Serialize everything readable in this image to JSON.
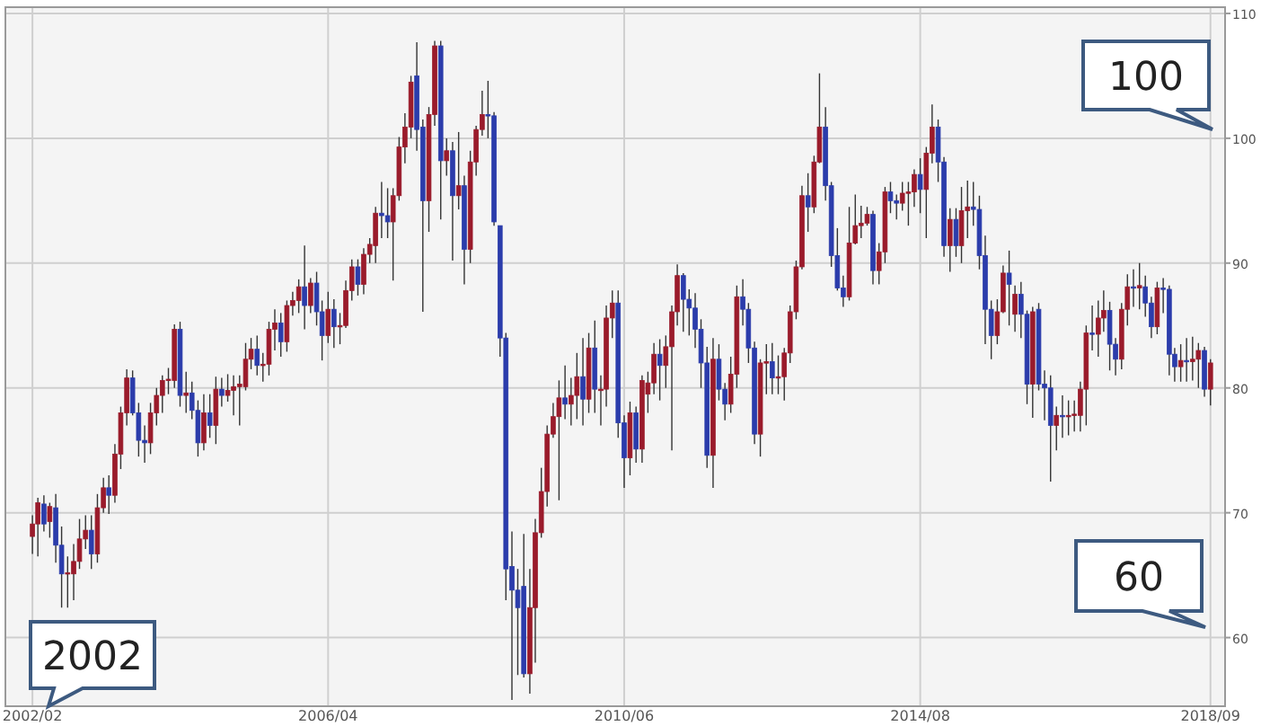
{
  "chart_data": {
    "type": "candlestick",
    "colors": [
      "#9a1b2b",
      "#9a1b2b",
      "#2b3cab",
      "#9a1b2b",
      "#2b3cab",
      "#2b3cab",
      "#9a1b2b",
      "#9a1b2b",
      "#9a1b2b",
      "#9a1b2b",
      "#2b3cab",
      "#9a1b2b",
      "#9a1b2b",
      "#2b3cab",
      "#9a1b2b",
      "#9a1b2b",
      "#9a1b2b",
      "#2b3cab",
      "#2b3cab",
      "#2b3cab",
      "#9a1b2b",
      "#9a1b2b",
      "#9a1b2b",
      "#9a1b2b",
      "#9a1b2b",
      "#2b3cab",
      "#9a1b2b",
      "#2b3cab",
      "#2b3cab",
      "#9a1b2b",
      "#2b3cab",
      "#9a1b2b",
      "#2b3cab",
      "#9a1b2b",
      "#9a1b2b",
      "#9a1b2b",
      "#9a1b2b",
      "#9a1b2b",
      "#2b3cab",
      "#9a1b2b",
      "#9a1b2b",
      "#9a1b2b",
      "#2b3cab",
      "#9a1b2b",
      "#9a1b2b",
      "#9a1b2b",
      "#2b3cab",
      "#9a1b2b",
      "#2b3cab",
      "#2b3cab",
      "#9a1b2b",
      "#2b3cab",
      "#9a1b2b",
      "#9a1b2b",
      "#9a1b2b",
      "#2b3cab",
      "#9a1b2b",
      "#9a1b2b",
      "#9a1b2b",
      "#2b3cab",
      "#2b3cab",
      "#9a1b2b",
      "#9a1b2b",
      "#9a1b2b",
      "#9a1b2b",
      "#2b3cab",
      "#2b3cab",
      "#9a1b2b",
      "#9a1b2b",
      "#2b3cab",
      "#9a1b2b",
      "#2b3cab",
      "#9a1b2b",
      "#2b3cab",
      "#9a1b2b",
      "#9a1b2b",
      "#9a1b2b",
      "#2b3cab",
      "#2b3cab",
      "#2b3cab",
      "#2b3cab",
      "#2b3cab",
      "#2b3cab",
      "#2b3cab",
      "#9a1b2b",
      "#9a1b2b",
      "#9a1b2b",
      "#9a1b2b",
      "#9a1b2b",
      "#9a1b2b",
      "#2b3cab",
      "#9a1b2b",
      "#9a1b2b",
      "#2b3cab",
      "#9a1b2b",
      "#2b3cab",
      "#9a1b2b",
      "#9a1b2b",
      "#9a1b2b",
      "#2b3cab",
      "#2b3cab",
      "#9a1b2b",
      "#2b3cab",
      "#9a1b2b",
      "#9a1b2b",
      "#9a1b2b",
      "#2b3cab",
      "#9a1b2b",
      "#9a1b2b",
      "#9a1b2b",
      "#2b3cab",
      "#2b3cab",
      "#2b3cab",
      "#2b3cab",
      "#2b3cab",
      "#9a1b2b",
      "#2b3cab",
      "#2b3cab",
      "#9a1b2b",
      "#9a1b2b",
      "#2b3cab",
      "#2b3cab",
      "#2b3cab",
      "#9a1b2b",
      "#9a1b2b",
      "#2b3cab",
      "#9a1b2b",
      "#9a1b2b",
      "#9a1b2b",
      "#9a1b2b",
      "#9a1b2b",
      "#2b3cab",
      "#9a1b2b",
      "#9a1b2b",
      "#2b3cab",
      "#2b3cab",
      "#2b3cab",
      "#2b3cab",
      "#9a1b2b",
      "#9a1b2b",
      "#9a1b2b",
      "#9a1b2b",
      "#2b3cab",
      "#9a1b2b",
      "#9a1b2b",
      "#2b3cab",
      "#2b3cab",
      "#9a1b2b",
      "#9a1b2b",
      "#9a1b2b",
      "#2b3cab",
      "#9a1b2b",
      "#9a1b2b",
      "#2b3cab",
      "#2b3cab",
      "#9a1b2b",
      "#2b3cab",
      "#9a1b2b",
      "#9a1b2b",
      "#2b3cab",
      "#2b3cab",
      "#2b3cab",
      "#2b3cab",
      "#9a1b2b",
      "#9a1b2b",
      "#2b3cab",
      "#9a1b2b",
      "#2b3cab",
      "#2b3cab",
      "#9a1b2b",
      "#2b3cab",
      "#2b3cab",
      "#2b3cab",
      "#9a1b2b",
      "#2b3cab",
      "#9a1b2b",
      "#9a1b2b",
      "#9a1b2b",
      "#9a1b2b",
      "#2b3cab",
      "#9a1b2b",
      "#9a1b2b",
      "#2b3cab",
      "#2b3cab",
      "#9a1b2b",
      "#9a1b2b",
      "#2b3cab",
      "#9a1b2b",
      "#2b3cab",
      "#2b3cab",
      "#9a1b2b",
      "#2b3cab",
      "#2b3cab",
      "#2b3cab",
      "#9a1b2b",
      "#2b3cab",
      "#9a1b2b",
      "#9a1b2b",
      "#2b3cab",
      "#9a1b2b"
    ],
    "xlim": [
      "2001-09-15",
      "2018-11-15"
    ],
    "xticks": [
      {
        "value": "2002-02",
        "label": "2002/02"
      },
      {
        "value": "2006-04",
        "label": "2006/04"
      },
      {
        "value": "2010-06",
        "label": "2010/06"
      },
      {
        "value": "2014-08",
        "label": "2014/08"
      },
      {
        "value": "2018-09",
        "label": "2018/09"
      }
    ],
    "ylim": [
      54.5,
      110.5
    ],
    "yticks": [
      60,
      70,
      80,
      90,
      100,
      110
    ],
    "grid": true,
    "annotations": [
      "2002",
      "100",
      "60"
    ],
    "ohlc": [
      [
        68.1,
        69.8,
        66.7,
        69.1
      ],
      [
        69.1,
        71.2,
        66.5,
        70.8
      ],
      [
        70.7,
        71.4,
        68.5,
        69.1
      ],
      [
        69.3,
        70.8,
        68,
        70.5
      ],
      [
        70.4,
        71.5,
        66,
        67.4
      ],
      [
        67.4,
        68.9,
        62.4,
        65.1
      ],
      [
        65.1,
        66.5,
        62.4,
        65.2
      ],
      [
        65.1,
        67.5,
        63,
        66.1
      ],
      [
        66.1,
        69.5,
        65.5,
        67.9
      ],
      [
        67.9,
        69.8,
        67.1,
        68.6
      ],
      [
        68.6,
        69.8,
        65.5,
        66.7
      ],
      [
        66.7,
        71.5,
        66,
        70.4
      ],
      [
        70.4,
        72.8,
        70,
        72
      ],
      [
        72,
        73,
        69.9,
        71.4
      ],
      [
        71.4,
        75.5,
        70.8,
        74.7
      ],
      [
        74.7,
        78.5,
        73.5,
        78
      ],
      [
        78,
        81.5,
        77,
        80.8
      ],
      [
        80.8,
        81.4,
        77.8,
        78
      ],
      [
        78,
        78.8,
        74.5,
        75.8
      ],
      [
        75.8,
        77,
        74,
        75.6
      ],
      [
        75.6,
        78.8,
        74.7,
        78
      ],
      [
        78,
        80,
        77,
        79.4
      ],
      [
        79.4,
        81,
        78,
        80.6
      ],
      [
        80.6,
        81.6,
        79.5,
        80.7
      ],
      [
        80.6,
        85.1,
        80,
        84.7
      ],
      [
        84.7,
        85.3,
        78.5,
        79.4
      ],
      [
        79.4,
        81.3,
        78,
        79.6
      ],
      [
        79.6,
        80.5,
        77.5,
        78.2
      ],
      [
        78.2,
        79,
        74.5,
        75.6
      ],
      [
        75.6,
        79.5,
        75,
        78
      ],
      [
        78,
        79.5,
        76,
        77
      ],
      [
        77,
        80.9,
        75.5,
        79.9
      ],
      [
        79.9,
        80.8,
        78.5,
        79.4
      ],
      [
        79.4,
        81.1,
        78.9,
        79.8
      ],
      [
        79.8,
        81,
        77.8,
        80.1
      ],
      [
        80.1,
        81,
        77,
        80.3
      ],
      [
        80.1,
        83.6,
        79.8,
        82.3
      ],
      [
        82.3,
        84,
        81.5,
        83.1
      ],
      [
        83.1,
        84.2,
        81,
        81.8
      ],
      [
        81.8,
        82.8,
        80.5,
        81.9
      ],
      [
        81.9,
        85.3,
        81,
        84.7
      ],
      [
        84.7,
        86.3,
        83,
        85.2
      ],
      [
        85.2,
        86,
        82.5,
        83.7
      ],
      [
        83.7,
        87,
        82.9,
        86.6
      ],
      [
        86.6,
        87.7,
        85.8,
        87
      ],
      [
        87,
        88.7,
        86,
        88.1
      ],
      [
        88.1,
        91.4,
        84.7,
        86.6
      ],
      [
        86.6,
        88.8,
        86,
        88.4
      ],
      [
        88.4,
        89.3,
        85,
        86.1
      ],
      [
        86.1,
        87,
        82.2,
        84.2
      ],
      [
        84.2,
        87.7,
        83.6,
        86.3
      ],
      [
        86.3,
        87.1,
        83.2,
        84.9
      ],
      [
        84.9,
        86,
        83.5,
        85
      ],
      [
        85,
        88.6,
        84.8,
        87.8
      ],
      [
        87.8,
        90.3,
        87,
        89.7
      ],
      [
        89.7,
        90.3,
        87.4,
        88.3
      ],
      [
        88.3,
        91.2,
        87.5,
        90.7
      ],
      [
        90.7,
        92,
        90,
        91.5
      ],
      [
        91.4,
        94.5,
        90,
        94
      ],
      [
        94,
        96.5,
        92,
        93.8
      ],
      [
        93.8,
        96,
        92,
        93.3
      ],
      [
        93.3,
        96,
        88.6,
        95.4
      ],
      [
        95.4,
        100.1,
        95,
        99.3
      ],
      [
        99.3,
        102,
        98,
        100.9
      ],
      [
        100.9,
        105,
        100,
        104.5
      ],
      [
        105,
        107.7,
        99,
        100.7
      ],
      [
        100.9,
        101.5,
        86.1,
        95
      ],
      [
        95,
        102.5,
        92.5,
        101.9
      ],
      [
        101.9,
        107.8,
        101,
        107.4
      ],
      [
        107.4,
        107.8,
        93.5,
        98.2
      ],
      [
        98.2,
        100,
        97,
        99
      ],
      [
        99,
        99.7,
        90.2,
        95.4
      ],
      [
        95.4,
        100.5,
        94.3,
        96.2
      ],
      [
        96.2,
        97,
        88.3,
        91.1
      ],
      [
        91.1,
        99,
        90,
        98.1
      ],
      [
        98.1,
        101,
        97,
        100.7
      ],
      [
        100.7,
        103.8,
        100.2,
        101.9
      ],
      [
        101.9,
        104.6,
        100,
        101.8
      ],
      [
        101.8,
        102.1,
        93,
        93.3
      ],
      [
        93,
        93,
        82.5,
        84
      ],
      [
        84,
        84.4,
        63,
        65.5
      ],
      [
        65.7,
        68.5,
        55,
        63.8
      ],
      [
        63.8,
        65.5,
        57,
        62.4
      ],
      [
        64.1,
        68.3,
        56.8,
        57.1
      ],
      [
        57.1,
        65.5,
        55.5,
        62.4
      ],
      [
        62.4,
        69.5,
        58,
        68.4
      ],
      [
        68.4,
        73.6,
        68,
        71.7
      ],
      [
        71.7,
        77,
        70.5,
        76.3
      ],
      [
        76.3,
        78.8,
        76,
        77.7
      ],
      [
        77.7,
        80.6,
        71,
        79.2
      ],
      [
        79.2,
        81.8,
        77.5,
        78.7
      ],
      [
        78.7,
        80.8,
        77,
        79.4
      ],
      [
        79.4,
        82.8,
        77.5,
        80.9
      ],
      [
        80.9,
        84,
        77,
        79.1
      ],
      [
        79.1,
        84.4,
        78,
        83.2
      ],
      [
        83.2,
        85.4,
        78,
        79.9
      ],
      [
        79.9,
        81,
        77,
        79.9
      ],
      [
        79.9,
        86.6,
        78.5,
        85.6
      ],
      [
        85.6,
        87.8,
        84,
        86.8
      ],
      [
        86.8,
        87.8,
        76,
        77.2
      ],
      [
        77.2,
        77.8,
        72,
        74.4
      ],
      [
        74.4,
        78.9,
        73,
        78
      ],
      [
        78,
        78.5,
        74,
        75.1
      ],
      [
        75.1,
        81,
        74,
        80.6
      ],
      [
        79.5,
        81.3,
        78,
        80.4
      ],
      [
        80.4,
        83.6,
        79.5,
        82.7
      ],
      [
        82.7,
        83.9,
        79,
        81.8
      ],
      [
        81.8,
        84.2,
        80,
        83.3
      ],
      [
        83.3,
        86.6,
        75,
        86.1
      ],
      [
        86.1,
        89.9,
        85,
        89
      ],
      [
        89,
        89.2,
        84.5,
        87.1
      ],
      [
        87.1,
        87.9,
        84.2,
        86.4
      ],
      [
        86.4,
        87.6,
        83.2,
        84.7
      ],
      [
        84.7,
        85.5,
        80,
        82
      ],
      [
        82,
        83.3,
        73.6,
        74.6
      ],
      [
        74.6,
        84,
        72,
        82.3
      ],
      [
        82.3,
        83.5,
        79,
        79.9
      ],
      [
        79.9,
        80.4,
        77.4,
        78.7
      ],
      [
        78.7,
        82.5,
        78,
        81.1
      ],
      [
        81.1,
        88.2,
        80,
        87.3
      ],
      [
        87.3,
        88.7,
        85,
        86.3
      ],
      [
        86.3,
        86.8,
        82,
        83.2
      ],
      [
        83.2,
        83.7,
        75.5,
        76.3
      ],
      [
        76.3,
        82.3,
        74.5,
        82
      ],
      [
        82,
        83.5,
        79.5,
        82.1
      ],
      [
        82.1,
        83.6,
        79.5,
        80.8
      ],
      [
        80.8,
        82.6,
        79.5,
        80.9
      ],
      [
        80.9,
        83.2,
        79,
        82.8
      ],
      [
        82.8,
        86.6,
        82,
        86.1
      ],
      [
        86.1,
        90.2,
        85.5,
        89.7
      ],
      [
        89.7,
        96.2,
        89.5,
        95.4
      ],
      [
        95.4,
        97.2,
        92.5,
        94.5
      ],
      [
        94.5,
        98.6,
        94,
        98.1
      ],
      [
        98.1,
        105.2,
        98,
        100.9
      ],
      [
        100.9,
        102.5,
        95,
        96.2
      ],
      [
        96.2,
        96.5,
        89.7,
        90.6
      ],
      [
        90.6,
        92.8,
        87.8,
        88
      ],
      [
        88,
        89,
        86.5,
        87.3
      ],
      [
        87.3,
        94.5,
        87,
        91.6
      ],
      [
        91.6,
        95.5,
        91.5,
        93
      ],
      [
        93,
        94.6,
        92,
        93.2
      ],
      [
        93.2,
        94.5,
        93,
        93.9
      ],
      [
        93.9,
        94.2,
        88.3,
        89.4
      ],
      [
        89.4,
        91.6,
        88.3,
        90.9
      ],
      [
        90.9,
        96.1,
        90,
        95.7
      ],
      [
        95.7,
        96.5,
        94,
        95
      ],
      [
        95,
        95.5,
        93.5,
        94.8
      ],
      [
        94.8,
        96.5,
        94.2,
        95.6
      ],
      [
        95.6,
        96.5,
        93,
        95.7
      ],
      [
        95.7,
        97.5,
        94.5,
        97.1
      ],
      [
        97.1,
        98.4,
        94,
        95.9
      ],
      [
        95.9,
        99.3,
        92,
        98.8
      ],
      [
        98.8,
        102.7,
        98,
        100.9
      ],
      [
        100.9,
        101.5,
        96.5,
        98.1
      ],
      [
        98.1,
        98.5,
        90.5,
        91.4
      ],
      [
        91.4,
        94.4,
        89.3,
        93.5
      ],
      [
        93.5,
        94.4,
        90.5,
        91.4
      ],
      [
        91.4,
        96.1,
        90,
        94.2
      ],
      [
        94.2,
        96.6,
        92,
        94.5
      ],
      [
        94.5,
        96.5,
        93,
        94.3
      ],
      [
        94.3,
        95.4,
        89.5,
        90.6
      ],
      [
        90.6,
        92.2,
        83.5,
        86.3
      ],
      [
        86.3,
        87,
        82.3,
        84.2
      ],
      [
        84.2,
        87.1,
        83.5,
        86.1
      ],
      [
        86.1,
        89.8,
        86,
        89.2
      ],
      [
        89.2,
        91,
        85,
        88.3
      ],
      [
        85.9,
        88.2,
        84.5,
        87.5
      ],
      [
        87.5,
        88.5,
        84,
        85.9
      ],
      [
        85.9,
        86.2,
        78.7,
        80.3
      ],
      [
        80.3,
        86.5,
        77.6,
        86.1
      ],
      [
        86.3,
        86.8,
        79.8,
        80.3
      ],
      [
        80.3,
        81.4,
        77.4,
        80
      ],
      [
        80,
        81,
        72.5,
        77
      ],
      [
        77,
        78.5,
        75,
        77.8
      ],
      [
        77.8,
        79.4,
        76,
        77.7
      ],
      [
        77.7,
        79,
        76.2,
        77.8
      ],
      [
        77.8,
        79,
        76.5,
        77.9
      ],
      [
        77.8,
        80.5,
        76.5,
        79.9
      ],
      [
        79.9,
        85,
        77,
        84.4
      ],
      [
        84.4,
        86.6,
        83,
        84.3
      ],
      [
        84.3,
        87,
        82.5,
        85.6
      ],
      [
        85.6,
        87.8,
        84.5,
        86.2
      ],
      [
        86.2,
        86.9,
        81.4,
        83.5
      ],
      [
        83.5,
        84,
        81,
        82.3
      ],
      [
        82.3,
        86.8,
        81.5,
        86.3
      ],
      [
        86.3,
        89.1,
        85,
        88.1
      ],
      [
        88.1,
        89.5,
        86.5,
        88
      ],
      [
        88,
        90,
        86.3,
        88.2
      ],
      [
        88.1,
        89,
        85.7,
        86.8
      ],
      [
        86.8,
        87.3,
        84,
        84.9
      ],
      [
        84.9,
        88.5,
        84.3,
        88
      ],
      [
        88,
        88.8,
        86,
        87.9
      ],
      [
        87.9,
        88.2,
        81,
        82.7
      ],
      [
        82.7,
        83.2,
        80.5,
        81.7
      ],
      [
        81.7,
        83.5,
        80.5,
        82.2
      ],
      [
        82.2,
        84,
        80.5,
        82.1
      ],
      [
        82.1,
        84.1,
        80.6,
        82.3
      ],
      [
        82.3,
        83.6,
        80,
        83
      ],
      [
        83,
        83.3,
        79.3,
        79.9
      ],
      [
        79.9,
        82.3,
        78.6,
        82
      ]
    ],
    "x": [
      "2002-02",
      "2002-03",
      "2002-04",
      "2002-05",
      "2002-06",
      "2002-07",
      "2002-08",
      "2002-09",
      "2002-10",
      "2002-11",
      "2002-12",
      "2003-01",
      "2003-02",
      "2003-03",
      "2003-04",
      "2003-05",
      "2003-06",
      "2003-07",
      "2003-08",
      "2003-09",
      "2003-10",
      "2003-11",
      "2003-12",
      "2004-01",
      "2004-02",
      "2004-03",
      "2004-04",
      "2004-05",
      "2004-06",
      "2004-07",
      "2004-08",
      "2004-09",
      "2004-10",
      "2004-11",
      "2004-12",
      "2005-01",
      "2005-02",
      "2005-03",
      "2005-04",
      "2005-05",
      "2005-06",
      "2005-07",
      "2005-08",
      "2005-09",
      "2005-10",
      "2005-11",
      "2005-12",
      "2006-01",
      "2006-02",
      "2006-03",
      "2006-04",
      "2006-05",
      "2006-06",
      "2006-07",
      "2006-08",
      "2006-09",
      "2006-10",
      "2006-11",
      "2006-12",
      "2007-01",
      "2007-02",
      "2007-03",
      "2007-04",
      "2007-05",
      "2007-06",
      "2007-07",
      "2007-08",
      "2007-09",
      "2007-10",
      "2007-11",
      "2007-12",
      "2008-01",
      "2008-02",
      "2008-03",
      "2008-04",
      "2008-05",
      "2008-06",
      "2008-07",
      "2008-08",
      "2008-09",
      "2008-10",
      "2008-11",
      "2008-12",
      "2009-01",
      "2009-02",
      "2009-03",
      "2009-04",
      "2009-05",
      "2009-06",
      "2009-07",
      "2009-08",
      "2009-09",
      "2009-10",
      "2009-11",
      "2009-12",
      "2010-01",
      "2010-02",
      "2010-03",
      "2010-04",
      "2010-05",
      "2010-06",
      "2010-07",
      "2010-08",
      "2010-09",
      "2010-10",
      "2010-11",
      "2010-12",
      "2011-01",
      "2011-02",
      "2011-03",
      "2011-04",
      "2011-05",
      "2011-06",
      "2011-07",
      "2011-08",
      "2011-09",
      "2011-10",
      "2011-11",
      "2011-12",
      "2012-01",
      "2012-02",
      "2012-03",
      "2012-04",
      "2012-05",
      "2012-06",
      "2012-07",
      "2012-08",
      "2012-09",
      "2012-10",
      "2012-11",
      "2012-12",
      "2013-01",
      "2013-02",
      "2013-03",
      "2013-04",
      "2013-05",
      "2013-06",
      "2013-07",
      "2013-08",
      "2013-09",
      "2013-10",
      "2013-11",
      "2013-12",
      "2014-01",
      "2014-02",
      "2014-03",
      "2014-04",
      "2014-05",
      "2014-06",
      "2014-07",
      "2014-08",
      "2014-09",
      "2014-10",
      "2014-11",
      "2014-12",
      "2015-01",
      "2015-02",
      "2015-03",
      "2015-04",
      "2015-05",
      "2015-06",
      "2015-07",
      "2015-08",
      "2015-09",
      "2015-10",
      "2015-11",
      "2015-12",
      "2016-01",
      "2016-02",
      "2016-03",
      "2016-04",
      "2016-05",
      "2016-06",
      "2016-07",
      "2016-08",
      "2016-09",
      "2016-10",
      "2016-11",
      "2016-12",
      "2017-01",
      "2017-02",
      "2017-03",
      "2017-04",
      "2017-05",
      "2017-06",
      "2017-07",
      "2017-08",
      "2017-09",
      "2017-10",
      "2017-11",
      "2017-12",
      "2018-01",
      "2018-02",
      "2018-03",
      "2018-04",
      "2018-05",
      "2018-06",
      "2018-07",
      "2018-08",
      "2018-09"
    ]
  }
}
